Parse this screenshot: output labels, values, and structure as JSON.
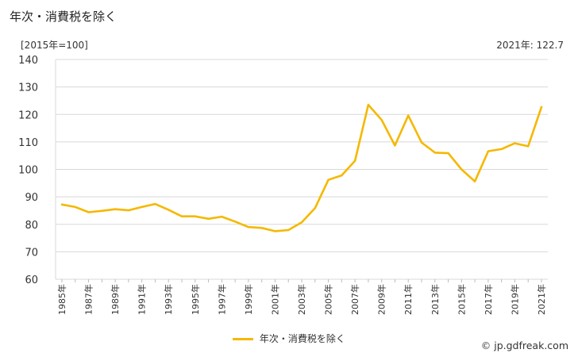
{
  "title": "年次・消費税を除く",
  "unit_label": "[2015年=100]",
  "latest_label": "2021年: 122.7",
  "credit": {
    "copyright_symbol": "©",
    "text": "jp.gdfreak.com"
  },
  "chart_data": {
    "type": "line",
    "title": "年次・消費税を除く",
    "ylabel": "[2015年=100]",
    "xlabel": "",
    "ylim": [
      60,
      140
    ],
    "yticks": [
      60,
      70,
      80,
      90,
      100,
      110,
      120,
      130,
      140
    ],
    "grid": true,
    "legend_position": "bottom",
    "x": [
      1985,
      1986,
      1987,
      1988,
      1989,
      1990,
      1991,
      1992,
      1993,
      1994,
      1995,
      1996,
      1997,
      1998,
      1999,
      2000,
      2001,
      2002,
      2003,
      2004,
      2005,
      2006,
      2007,
      2008,
      2009,
      2010,
      2011,
      2012,
      2013,
      2014,
      2015,
      2016,
      2017,
      2018,
      2019,
      2020,
      2021
    ],
    "xtick_labels": [
      "1985年",
      "1987年",
      "1989年",
      "1991年",
      "1993年",
      "1995年",
      "1997年",
      "1999年",
      "2001年",
      "2003年",
      "2005年",
      "2007年",
      "2009年",
      "2011年",
      "2013年",
      "2015年",
      "2017年",
      "2019年",
      "2021年"
    ],
    "series": [
      {
        "name": "年次・消費税を除く",
        "color": "#f5b800",
        "values": [
          87.2,
          86.3,
          84.4,
          84.9,
          85.5,
          85.1,
          86.3,
          87.4,
          85.3,
          82.9,
          82.9,
          82.0,
          82.8,
          81.0,
          79.0,
          78.7,
          77.5,
          77.9,
          80.7,
          85.9,
          96.2,
          97.8,
          103.1,
          123.5,
          118.0,
          108.7,
          119.6,
          109.8,
          106.1,
          105.9,
          100.0,
          95.6,
          106.6,
          107.4,
          109.5,
          108.4,
          122.7
        ]
      }
    ]
  }
}
